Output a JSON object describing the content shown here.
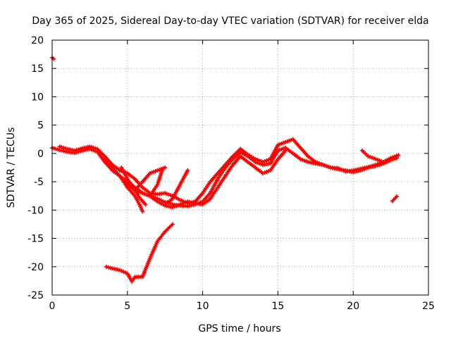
{
  "chart_data": {
    "type": "scatter",
    "title": "Day 365 of 2025, Sidereal Day-to-day VTEC variation (SDTVAR) for receiver elda",
    "xlabel": "GPS time / hours",
    "ylabel": "SDTVAR / TECUs",
    "xlim": [
      0,
      25
    ],
    "ylim": [
      -25,
      20
    ],
    "xticks": [
      0,
      5,
      10,
      15,
      20,
      25
    ],
    "yticks": [
      -25,
      -20,
      -15,
      -10,
      -5,
      0,
      5,
      10,
      15,
      20
    ],
    "xtick_labels": [
      "0",
      "5",
      "10",
      "15",
      "20",
      "25"
    ],
    "ytick_labels": [
      "-25",
      "-20",
      "-15",
      "-10",
      "-5",
      "0",
      "5",
      "10",
      "15",
      "20"
    ],
    "grid": true,
    "marker_color": "#ff0000",
    "series": [
      {
        "name": "outlier-start",
        "x": [
          0.0,
          0.1
        ],
        "y": [
          16.9,
          16.7
        ]
      },
      {
        "name": "trace-main-1",
        "x": [
          0.0,
          0.5,
          1.0,
          1.5,
          2.0,
          2.5,
          3.0,
          3.5,
          4.0,
          4.5,
          5.0,
          5.5,
          6.0,
          6.5,
          7.0,
          7.5,
          8.0,
          8.5,
          9.0,
          9.5,
          10.0,
          10.5,
          11.0,
          11.5,
          12.0,
          12.5,
          13.0,
          13.5,
          14.0,
          14.5,
          15.0,
          15.5,
          16.0,
          16.5,
          17.0,
          17.5,
          18.0,
          18.5,
          19.0,
          19.5,
          20.0,
          20.5,
          21.0,
          21.5,
          22.0,
          22.5,
          22.9
        ],
        "y": [
          1.0,
          0.6,
          0.3,
          0.1,
          0.5,
          0.8,
          0.3,
          -1.5,
          -3.0,
          -4.0,
          -5.0,
          -6.0,
          -7.0,
          -7.5,
          -8.0,
          -8.6,
          -9.0,
          -9.2,
          -9.3,
          -9.0,
          -8.5,
          -7.0,
          -4.5,
          -2.5,
          -1.0,
          0.2,
          -0.5,
          -1.5,
          -2.0,
          -1.8,
          0.5,
          1.0,
          0.0,
          -1.0,
          -1.5,
          -1.8,
          -2.0,
          -2.5,
          -2.8,
          -3.0,
          -3.3,
          -3.0,
          -2.5,
          -2.2,
          -1.8,
          -1.2,
          -0.8
        ]
      },
      {
        "name": "trace-main-2",
        "x": [
          0.5,
          1.0,
          1.5,
          2.0,
          2.5,
          3.0,
          3.5,
          4.0,
          4.5,
          5.0,
          5.5,
          6.0,
          6.5,
          7.0,
          7.5,
          8.0,
          8.5,
          9.0,
          9.5,
          10.0,
          10.5,
          11.0,
          11.5,
          12.0,
          12.5,
          13.0,
          13.5,
          14.0,
          14.5,
          15.0,
          15.5,
          16.0,
          16.5,
          17.0,
          17.5,
          18.0,
          18.5,
          19.0,
          19.5,
          20.0,
          20.5,
          21.0,
          21.5,
          22.0,
          22.5,
          23.0
        ],
        "y": [
          1.2,
          0.8,
          0.5,
          0.9,
          1.2,
          0.8,
          -0.5,
          -2.0,
          -3.0,
          -3.5,
          -4.5,
          -6.0,
          -7.0,
          -7.2,
          -7.0,
          -7.5,
          -8.2,
          -8.8,
          -8.5,
          -7.0,
          -5.0,
          -3.5,
          -2.0,
          -0.5,
          0.8,
          -0.2,
          -1.0,
          -1.5,
          -1.0,
          1.5,
          2.0,
          2.5,
          1.0,
          -0.5,
          -1.5,
          -2.0,
          -2.5,
          -2.6,
          -3.2,
          -3.0,
          -2.7,
          -2.4,
          -2.0,
          -1.5,
          -0.8,
          -0.3
        ]
      },
      {
        "name": "trace-main-3",
        "x": [
          3.5,
          4.0,
          4.5,
          5.0,
          5.5,
          6.0,
          6.5,
          7.0,
          7.5,
          8.0,
          8.5,
          9.0,
          9.5,
          10.0,
          10.5,
          11.0,
          11.5,
          12.0,
          12.5,
          13.0,
          13.5,
          14.0,
          14.5,
          15.0,
          15.5
        ],
        "y": [
          -0.8,
          -2.5,
          -4.0,
          -5.5,
          -6.5,
          -7.0,
          -7.5,
          -8.5,
          -9.2,
          -9.5,
          -9.0,
          -8.5,
          -8.8,
          -9.0,
          -8.0,
          -6.0,
          -4.0,
          -2.0,
          -0.5,
          -1.5,
          -2.5,
          -3.5,
          -3.0,
          -1.0,
          0.5
        ]
      },
      {
        "name": "trace-dip-a",
        "x": [
          4.5,
          5.0,
          5.5,
          5.8,
          6.0
        ],
        "y": [
          -4.0,
          -6.0,
          -7.5,
          -9.0,
          -10.2
        ]
      },
      {
        "name": "trace-dip-b",
        "x": [
          4.6,
          5.0,
          5.4,
          5.8,
          6.2
        ],
        "y": [
          -2.5,
          -4.5,
          -6.0,
          -7.8,
          -9.0
        ]
      },
      {
        "name": "trace-rise-a",
        "x": [
          5.5,
          6.0,
          6.5,
          7.0,
          7.5
        ],
        "y": [
          -6.5,
          -5.0,
          -3.5,
          -3.0,
          -2.5
        ]
      },
      {
        "name": "trace-rise-b",
        "x": [
          7.5,
          8.0,
          8.5,
          9.0
        ],
        "y": [
          -9.0,
          -8.0,
          -5.5,
          -3.0
        ]
      },
      {
        "name": "trace-rise-c",
        "x": [
          6.5,
          7.0,
          7.3
        ],
        "y": [
          -7.5,
          -5.5,
          -3.0
        ]
      },
      {
        "name": "trace-lower",
        "x": [
          3.6,
          4.0,
          4.5,
          5.0,
          5.3,
          5.5,
          6.0,
          6.5,
          7.0,
          7.5,
          8.0
        ],
        "y": [
          -20.0,
          -20.3,
          -20.6,
          -21.2,
          -22.6,
          -21.8,
          -21.8,
          -18.5,
          -15.5,
          -13.8,
          -12.5
        ]
      },
      {
        "name": "trace-end-early",
        "x": [
          20.6,
          21.0,
          21.5,
          22.0
        ],
        "y": [
          0.5,
          -0.5,
          -1.0,
          -1.5
        ]
      },
      {
        "name": "outlier-end",
        "x": [
          22.6,
          22.9
        ],
        "y": [
          -8.4,
          -7.6
        ]
      }
    ]
  }
}
